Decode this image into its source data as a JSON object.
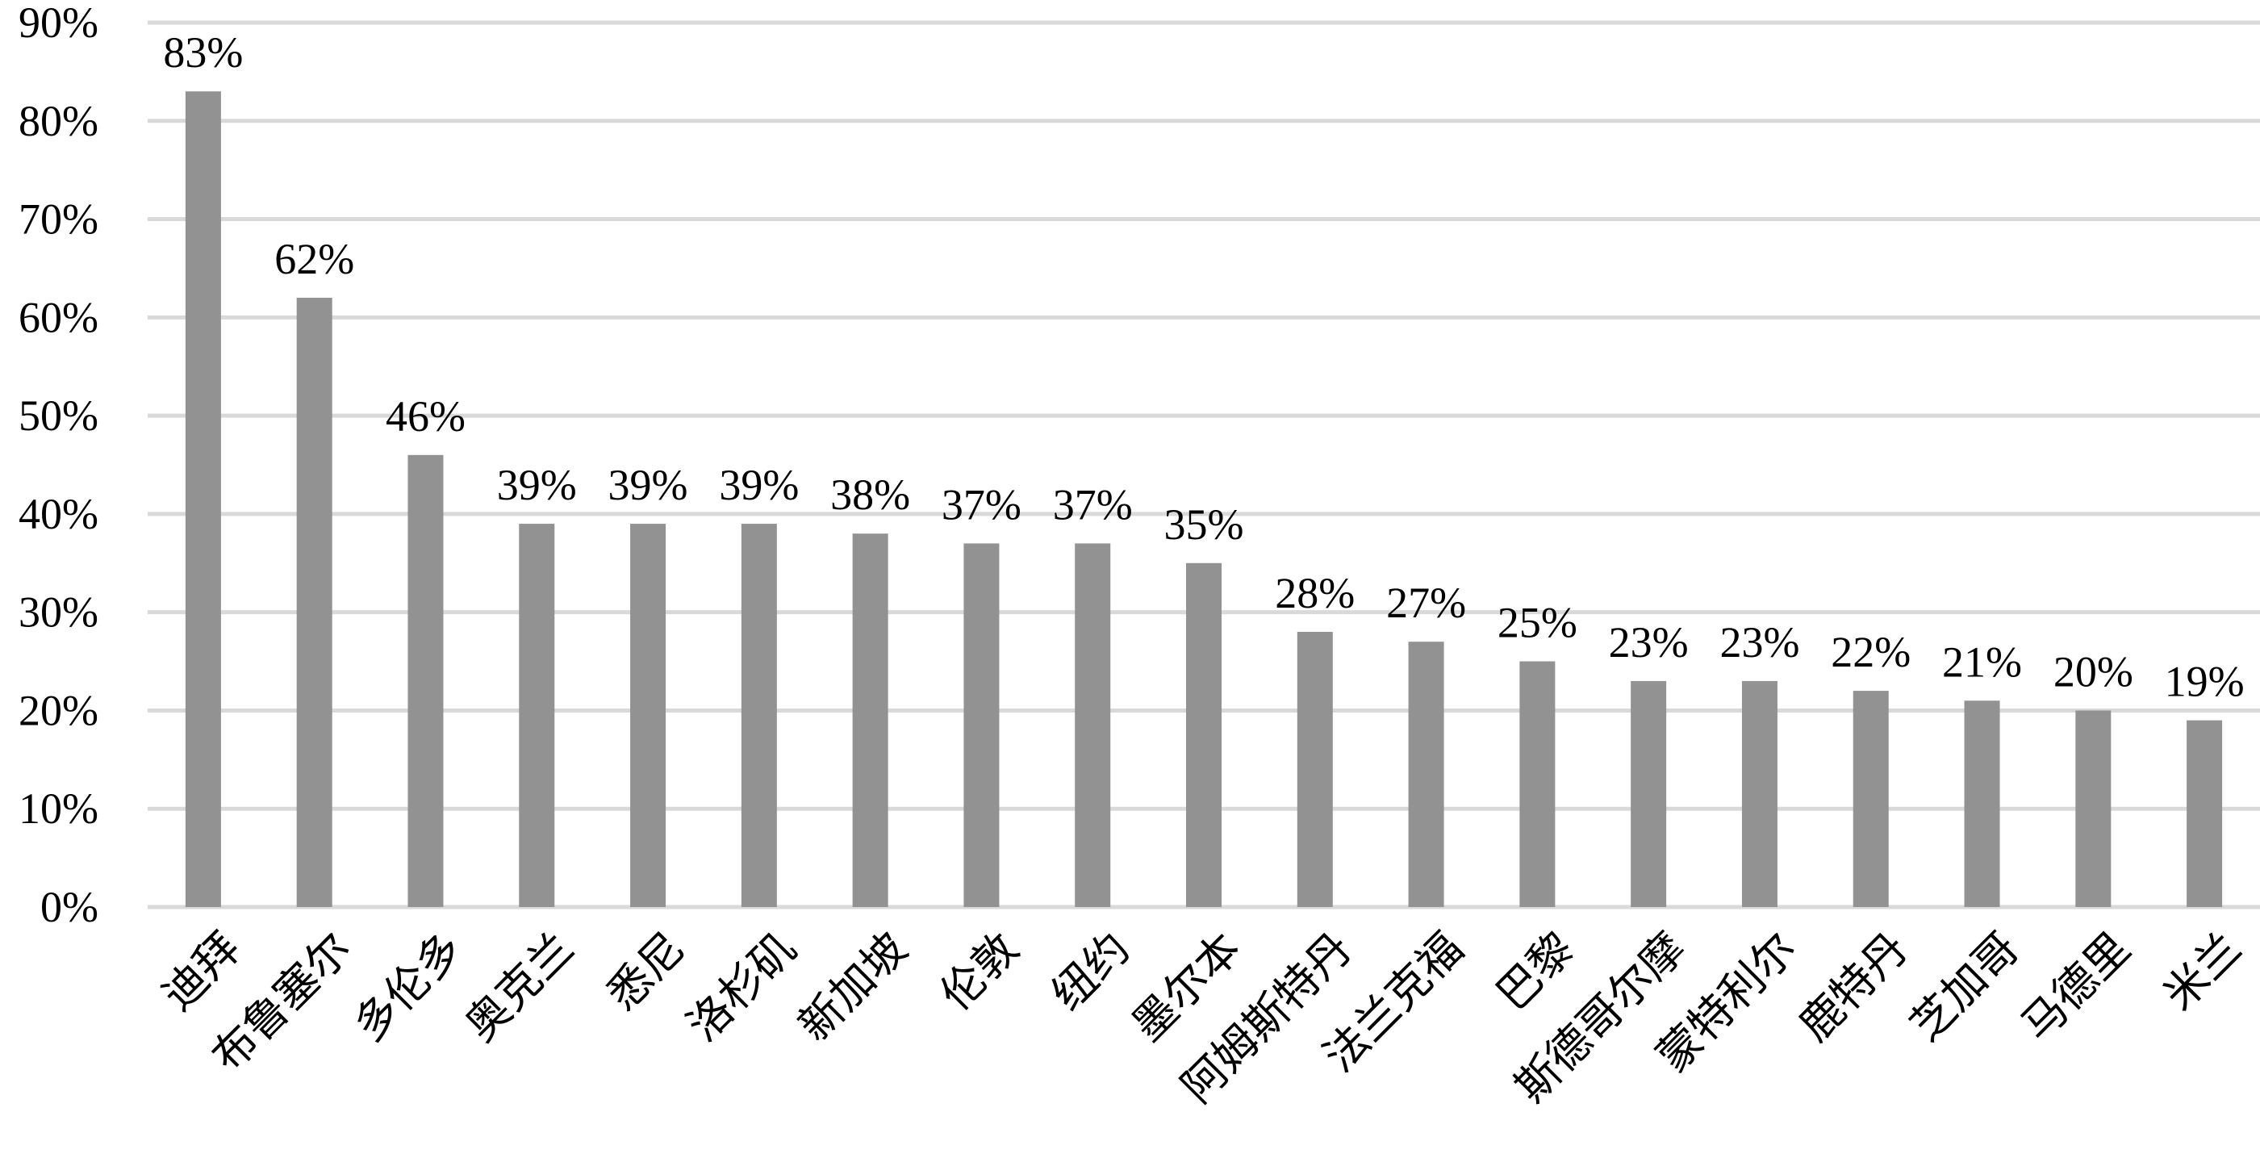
{
  "chart_data": {
    "type": "bar",
    "categories": [
      "迪拜",
      "布鲁塞尔",
      "多伦多",
      "奥克兰",
      "悉尼",
      "洛杉矶",
      "新加坡",
      "伦敦",
      "纽约",
      "墨尔本",
      "阿姆斯特丹",
      "法兰克福",
      "巴黎",
      "斯德哥尔摩",
      "蒙特利尔",
      "鹿特丹",
      "芝加哥",
      "马德里",
      "米兰"
    ],
    "values": [
      83,
      62,
      46,
      39,
      39,
      39,
      38,
      37,
      37,
      35,
      28,
      27,
      25,
      23,
      23,
      22,
      21,
      20,
      19
    ],
    "data_labels": [
      "83%",
      "62%",
      "46%",
      "39%",
      "39%",
      "39%",
      "38%",
      "37%",
      "37%",
      "35%",
      "28%",
      "27%",
      "25%",
      "23%",
      "23%",
      "22%",
      "21%",
      "20%",
      "19%"
    ],
    "y_ticks": [
      "0%",
      "10%",
      "20%",
      "30%",
      "40%",
      "50%",
      "60%",
      "70%",
      "80%",
      "90%"
    ],
    "ylim": [
      0,
      90
    ],
    "grid": true,
    "colors": {
      "bar": "#929292",
      "grid": "#d9d9d9"
    }
  }
}
